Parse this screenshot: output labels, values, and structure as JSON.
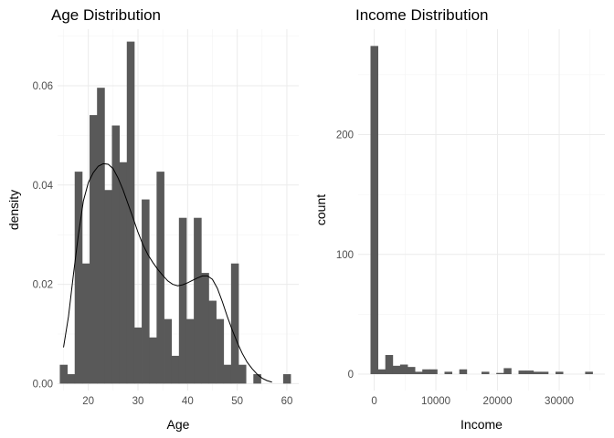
{
  "chart_data": [
    {
      "type": "bar",
      "title": "Age Distribution",
      "xlabel": "Age",
      "ylabel": "density",
      "bin_width": 1.5,
      "xlim": [
        13.8,
        62.4
      ],
      "ylim": [
        -0.0014,
        0.0714
      ],
      "x_ticks": [
        20,
        30,
        40,
        50,
        60
      ],
      "y_ticks": [
        0.0,
        0.02,
        0.04,
        0.06
      ],
      "y_tick_labels": [
        "0.00",
        "0.02",
        "0.04",
        "0.06"
      ],
      "bar_color": "#595959",
      "bins": [
        {
          "x": 15.0,
          "y": 0.0038
        },
        {
          "x": 16.5,
          "y": 0.0019
        },
        {
          "x": 18.0,
          "y": 0.0427
        },
        {
          "x": 19.5,
          "y": 0.0242
        },
        {
          "x": 21.0,
          "y": 0.0541
        },
        {
          "x": 22.5,
          "y": 0.0596
        },
        {
          "x": 24.0,
          "y": 0.039
        },
        {
          "x": 25.5,
          "y": 0.052
        },
        {
          "x": 27.0,
          "y": 0.0446
        },
        {
          "x": 28.5,
          "y": 0.0689
        },
        {
          "x": 30.0,
          "y": 0.0113
        },
        {
          "x": 31.5,
          "y": 0.0371
        },
        {
          "x": 33.0,
          "y": 0.0093
        },
        {
          "x": 34.5,
          "y": 0.0427
        },
        {
          "x": 36.0,
          "y": 0.013
        },
        {
          "x": 37.5,
          "y": 0.0056
        },
        {
          "x": 39.0,
          "y": 0.0334
        },
        {
          "x": 40.5,
          "y": 0.013
        },
        {
          "x": 42.0,
          "y": 0.0334
        },
        {
          "x": 43.5,
          "y": 0.0223
        },
        {
          "x": 45.0,
          "y": 0.0167
        },
        {
          "x": 46.5,
          "y": 0.013
        },
        {
          "x": 48.0,
          "y": 0.0038
        },
        {
          "x": 49.5,
          "y": 0.0242
        },
        {
          "x": 51.0,
          "y": 0.0038
        },
        {
          "x": 52.5,
          "y": 0.0
        },
        {
          "x": 54.0,
          "y": 0.0019
        },
        {
          "x": 55.5,
          "y": 0.0
        },
        {
          "x": 57.0,
          "y": 0.0
        },
        {
          "x": 58.5,
          "y": 0.0
        },
        {
          "x": 60.0,
          "y": 0.0019
        }
      ],
      "density_curve": [
        [
          15.0,
          0.0073
        ],
        [
          16.0,
          0.0135
        ],
        [
          17.0,
          0.022
        ],
        [
          18.0,
          0.03
        ],
        [
          19.0,
          0.0368
        ],
        [
          20.0,
          0.0405
        ],
        [
          21.0,
          0.0425
        ],
        [
          22.0,
          0.0438
        ],
        [
          23.0,
          0.0443
        ],
        [
          24.0,
          0.0442
        ],
        [
          25.0,
          0.0433
        ],
        [
          26.0,
          0.0414
        ],
        [
          27.0,
          0.039
        ],
        [
          28.0,
          0.0362
        ],
        [
          29.0,
          0.0334
        ],
        [
          30.0,
          0.0305
        ],
        [
          31.0,
          0.028
        ],
        [
          32.0,
          0.026
        ],
        [
          33.0,
          0.0244
        ],
        [
          34.0,
          0.023
        ],
        [
          35.0,
          0.0218
        ],
        [
          36.0,
          0.0207
        ],
        [
          37.0,
          0.02
        ],
        [
          38.0,
          0.0197
        ],
        [
          39.0,
          0.0199
        ],
        [
          40.0,
          0.0203
        ],
        [
          41.0,
          0.0208
        ],
        [
          42.0,
          0.0213
        ],
        [
          43.0,
          0.0217
        ],
        [
          44.0,
          0.0217
        ],
        [
          45.0,
          0.021
        ],
        [
          46.0,
          0.0192
        ],
        [
          47.0,
          0.0165
        ],
        [
          48.0,
          0.0135
        ],
        [
          49.0,
          0.0108
        ],
        [
          50.0,
          0.0083
        ],
        [
          51.0,
          0.0061
        ],
        [
          52.0,
          0.0043
        ],
        [
          53.0,
          0.003
        ],
        [
          54.0,
          0.0019
        ],
        [
          55.0,
          0.0011
        ],
        [
          56.0,
          0.0006
        ],
        [
          57.0,
          0.0003
        ]
      ]
    },
    {
      "type": "bar",
      "title": "Income Distribution",
      "xlabel": "Income",
      "ylabel": "count",
      "bin_width": 1200,
      "xlim": [
        -2600,
        37400
      ],
      "ylim": [
        -13.7,
        288
      ],
      "x_ticks": [
        0,
        10000,
        20000,
        30000
      ],
      "y_ticks": [
        0,
        100,
        200
      ],
      "bar_color": "#595959",
      "bins": [
        {
          "x": 0,
          "y": 274
        },
        {
          "x": 1200,
          "y": 4
        },
        {
          "x": 2400,
          "y": 16
        },
        {
          "x": 3600,
          "y": 7
        },
        {
          "x": 4800,
          "y": 8
        },
        {
          "x": 6000,
          "y": 6
        },
        {
          "x": 7200,
          "y": 2
        },
        {
          "x": 8400,
          "y": 4
        },
        {
          "x": 9600,
          "y": 4
        },
        {
          "x": 10800,
          "y": 0
        },
        {
          "x": 12000,
          "y": 2
        },
        {
          "x": 13200,
          "y": 0
        },
        {
          "x": 14400,
          "y": 4
        },
        {
          "x": 15600,
          "y": 0
        },
        {
          "x": 16800,
          "y": 0
        },
        {
          "x": 18000,
          "y": 2
        },
        {
          "x": 19200,
          "y": 0
        },
        {
          "x": 20400,
          "y": 1
        },
        {
          "x": 21600,
          "y": 5
        },
        {
          "x": 22800,
          "y": 0
        },
        {
          "x": 24000,
          "y": 3
        },
        {
          "x": 25200,
          "y": 3
        },
        {
          "x": 26400,
          "y": 2
        },
        {
          "x": 27600,
          "y": 2
        },
        {
          "x": 28800,
          "y": 0
        },
        {
          "x": 30000,
          "y": 2
        },
        {
          "x": 31200,
          "y": 0
        },
        {
          "x": 32400,
          "y": 0
        },
        {
          "x": 33600,
          "y": 0
        },
        {
          "x": 34800,
          "y": 2
        }
      ]
    }
  ]
}
